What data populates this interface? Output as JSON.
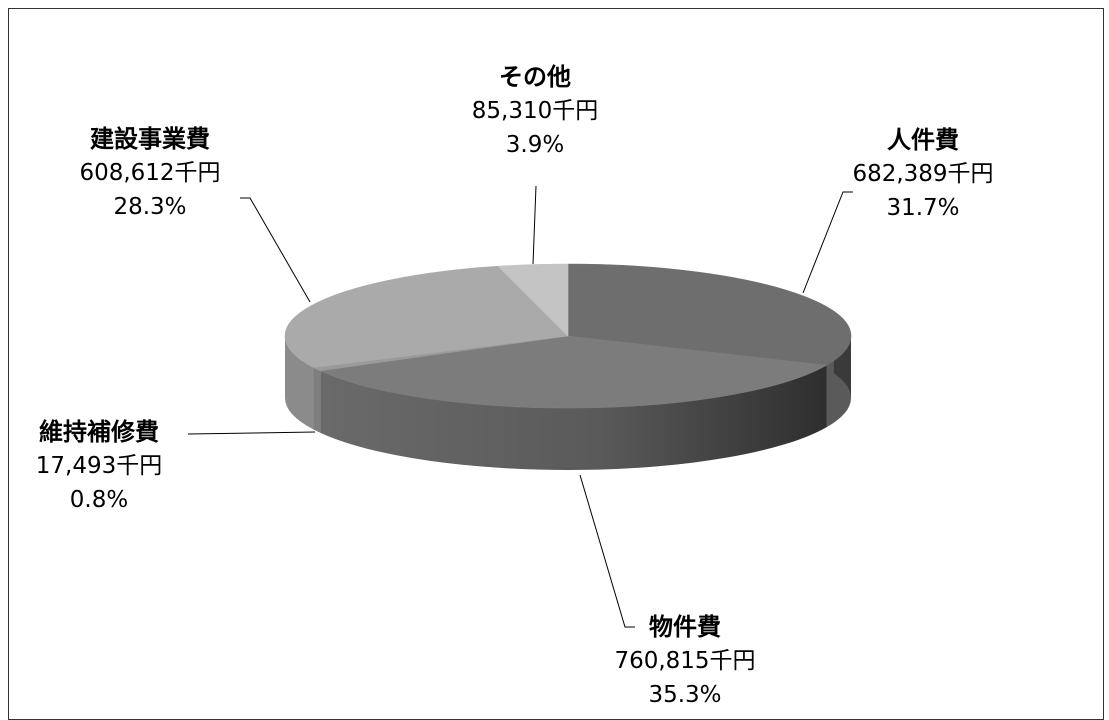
{
  "chart_data": {
    "type": "pie",
    "title": "",
    "unit": "千円",
    "slices": [
      {
        "name": "人件費",
        "value": 682389,
        "value_label": "682,389千円",
        "percent_label": "31.7%",
        "color": "#6e6e6e"
      },
      {
        "name": "物件費",
        "value": 760815,
        "value_label": "760,815千円",
        "percent_label": "35.3%",
        "color": "#7c7c7c"
      },
      {
        "name": "維持補修費",
        "value": 17493,
        "value_label": "17,493千円",
        "percent_label": "0.8%",
        "color": "#9a9a9a"
      },
      {
        "name": "建設事業費",
        "value": 608612,
        "value_label": "608,612千円",
        "percent_label": "28.3%",
        "color": "#aaaaaa"
      },
      {
        "name": "その他",
        "value": 85310,
        "value_label": "85,310千円",
        "percent_label": "3.9%",
        "color": "#c4c4c4"
      }
    ]
  }
}
